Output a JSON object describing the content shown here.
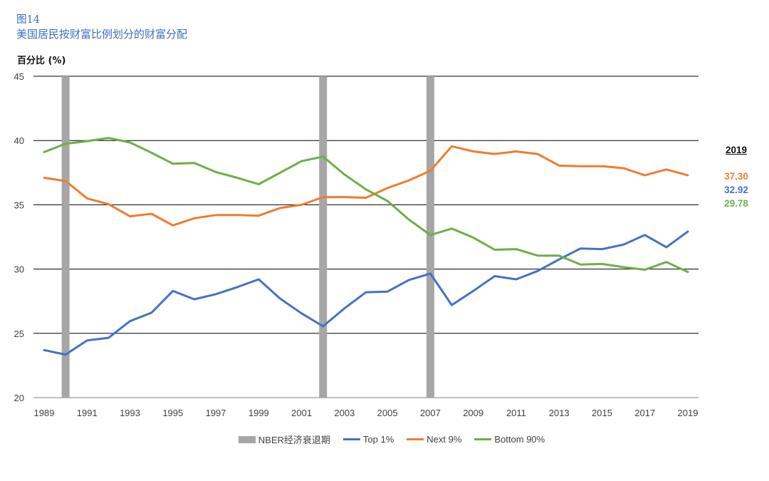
{
  "header": {
    "figure_number": "图14",
    "title": "美国居民按财富比例划分的财富分配",
    "unit_label": "百分比 (%)"
  },
  "chart_data": {
    "type": "line",
    "title": "美国居民按财富比例划分的财富分配",
    "ylabel": "百分比 (%)",
    "xlabel": "",
    "ylim": [
      20,
      45
    ],
    "yticks": [
      "20",
      "25",
      "30",
      "35",
      "40",
      "45"
    ],
    "x": [
      1989,
      1990,
      1991,
      1992,
      1993,
      1994,
      1995,
      1996,
      1997,
      1998,
      1999,
      2000,
      2001,
      2002,
      2003,
      2004,
      2005,
      2006,
      2007,
      2008,
      2009,
      2010,
      2011,
      2012,
      2013,
      2014,
      2015,
      2016,
      2017,
      2018,
      2019
    ],
    "xtick_labels": [
      "1989",
      "1991",
      "1993",
      "1995",
      "1997",
      "1999",
      "2001",
      "2003",
      "2005",
      "2007",
      "2009",
      "2011",
      "2013",
      "2015",
      "2017",
      "2019"
    ],
    "grid": "horizontal",
    "legend_placement": "bottom",
    "recessions": {
      "name": "NBER经济衰退期",
      "color": "#a6a6a6",
      "years": [
        1990,
        2002,
        2007
      ]
    },
    "series": [
      {
        "name": "Top 1%",
        "color": "#4472c4",
        "values": [
          23.7,
          23.35,
          24.45,
          24.65,
          25.95,
          26.6,
          28.3,
          27.65,
          28.05,
          28.6,
          29.2,
          27.7,
          26.55,
          25.55,
          26.95,
          28.2,
          28.25,
          29.15,
          29.65,
          27.2,
          28.3,
          29.45,
          29.2,
          29.85,
          30.75,
          31.6,
          31.55,
          31.9,
          32.65,
          31.7,
          32.92
        ]
      },
      {
        "name": "Next 9%",
        "color": "#ed7d31",
        "values": [
          37.1,
          36.85,
          35.5,
          35.05,
          34.1,
          34.3,
          33.4,
          33.95,
          34.2,
          34.2,
          34.15,
          34.75,
          35.0,
          35.6,
          35.6,
          35.55,
          36.3,
          36.9,
          37.65,
          39.55,
          39.15,
          38.95,
          39.15,
          38.95,
          38.05,
          38.0,
          38.0,
          37.85,
          37.3,
          37.75,
          37.3
        ]
      },
      {
        "name": "Bottom 90%",
        "color": "#70ad47",
        "values": [
          39.1,
          39.75,
          39.95,
          40.2,
          39.85,
          39.05,
          38.2,
          38.25,
          37.55,
          37.1,
          36.6,
          37.5,
          38.4,
          38.75,
          37.35,
          36.2,
          35.3,
          33.85,
          32.65,
          33.15,
          32.45,
          31.5,
          31.55,
          31.05,
          31.05,
          30.35,
          30.4,
          30.15,
          29.95,
          30.55,
          29.78
        ]
      }
    ],
    "end_labels": {
      "year": "2019",
      "values": [
        {
          "text": "37.30",
          "color": "#ed7d31"
        },
        {
          "text": "32.92",
          "color": "#4472c4"
        },
        {
          "text": "29.78",
          "color": "#70ad47"
        }
      ]
    }
  }
}
